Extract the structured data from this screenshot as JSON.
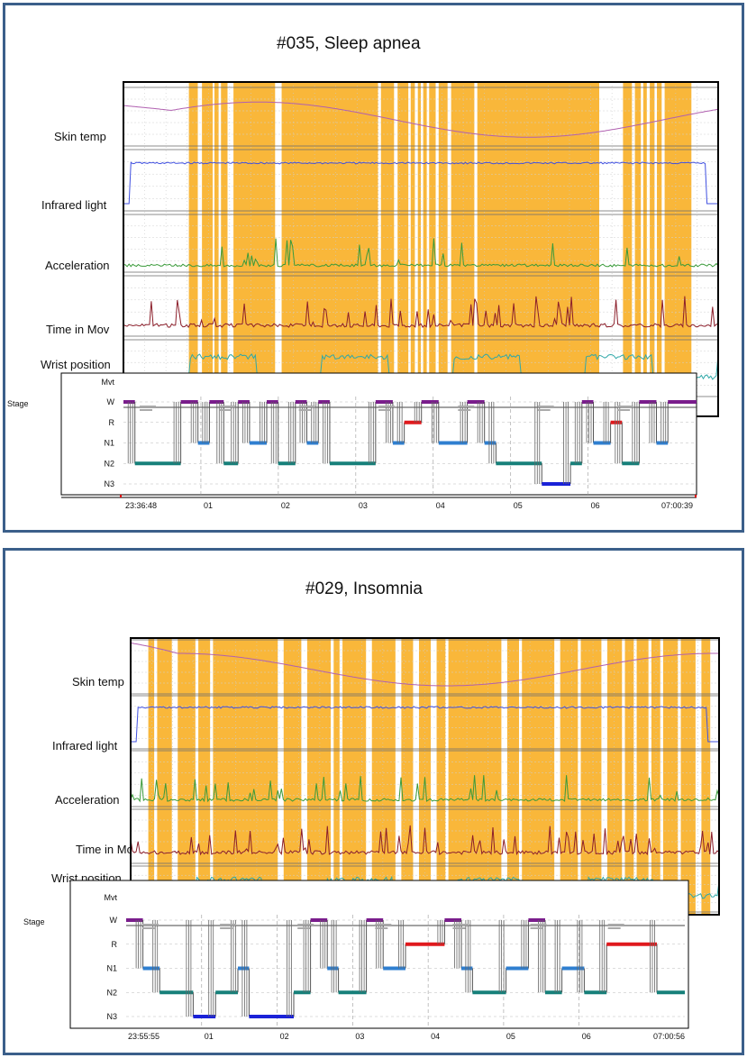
{
  "chart_data": [
    {
      "type": "line",
      "title": "#035, Sleep apnea",
      "start_time": "23:36:48",
      "end_time": "07:00:39",
      "hour_ticks": [
        "01",
        "02",
        "03",
        "04",
        "05",
        "06"
      ],
      "stage_axis_label": "Stage",
      "stage_levels": [
        "Mvt",
        "W",
        "R",
        "N1",
        "N2",
        "N3"
      ],
      "channels": [
        "Skin temp",
        "Infrared  light",
        "Acceleration",
        "Time in Mov",
        "Wrist position"
      ],
      "channel_colors": [
        "#b060b0",
        "#4050e0",
        "#3a9a3a",
        "#8b1e2a",
        "#30a8a8"
      ],
      "highlight_color": "#f9b73a",
      "white_gaps": [
        [
          0,
          0.11
        ],
        [
          0.125,
          0.132
        ],
        [
          0.15,
          0.153
        ],
        [
          0.16,
          0.164
        ],
        [
          0.175,
          0.185
        ],
        [
          0.255,
          0.266
        ],
        [
          0.428,
          0.433
        ],
        [
          0.455,
          0.461
        ],
        [
          0.479,
          0.483
        ],
        [
          0.49,
          0.495
        ],
        [
          0.5,
          0.504
        ],
        [
          0.51,
          0.514
        ],
        [
          0.525,
          0.53
        ],
        [
          0.545,
          0.551
        ],
        [
          0.59,
          0.595
        ],
        [
          0.8,
          0.84
        ],
        [
          0.855,
          0.86
        ],
        [
          0.87,
          0.874
        ],
        [
          0.88,
          0.885
        ],
        [
          0.893,
          0.897
        ],
        [
          0.905,
          0.91
        ],
        [
          0.955,
          1.0
        ]
      ],
      "hypnogram": [
        [
          0,
          "W"
        ],
        [
          0.02,
          "N2"
        ],
        [
          0.1,
          "W"
        ],
        [
          0.13,
          "N1"
        ],
        [
          0.15,
          "W"
        ],
        [
          0.175,
          "N2"
        ],
        [
          0.2,
          "W"
        ],
        [
          0.22,
          "N1"
        ],
        [
          0.25,
          "W"
        ],
        [
          0.27,
          "N2"
        ],
        [
          0.3,
          "W"
        ],
        [
          0.32,
          "N1"
        ],
        [
          0.34,
          "W"
        ],
        [
          0.36,
          "N2"
        ],
        [
          0.44,
          "W"
        ],
        [
          0.47,
          "N1"
        ],
        [
          0.49,
          "R"
        ],
        [
          0.52,
          "W"
        ],
        [
          0.55,
          "N1"
        ],
        [
          0.6,
          "W"
        ],
        [
          0.63,
          "N1"
        ],
        [
          0.65,
          "N2"
        ],
        [
          0.73,
          "N3"
        ],
        [
          0.78,
          "N2"
        ],
        [
          0.8,
          "W"
        ],
        [
          0.82,
          "N1"
        ],
        [
          0.85,
          "R"
        ],
        [
          0.87,
          "N2"
        ],
        [
          0.9,
          "W"
        ],
        [
          0.93,
          "N1"
        ],
        [
          0.95,
          "W"
        ]
      ]
    },
    {
      "type": "line",
      "title": "#029, Insomnia",
      "start_time": "23:55:55",
      "end_time": "07:00:56",
      "hour_ticks": [
        "01",
        "02",
        "03",
        "04",
        "05",
        "06"
      ],
      "stage_axis_label": "Stage",
      "stage_levels": [
        "Mvt",
        "W",
        "R",
        "N1",
        "N2",
        "N3"
      ],
      "channels": [
        "Skin temp",
        "Infrared  light",
        "Acceleration",
        "Time in Mov",
        "Wrist position"
      ],
      "channel_colors": [
        "#b060b0",
        "#4050e0",
        "#3a9a3a",
        "#8b1e2a",
        "#30a8a8"
      ],
      "highlight_color": "#f9b73a",
      "white_gaps": [
        [
          0,
          0.03
        ],
        [
          0.04,
          0.045
        ],
        [
          0.07,
          0.08
        ],
        [
          0.11,
          0.115
        ],
        [
          0.135,
          0.14
        ],
        [
          0.25,
          0.26
        ],
        [
          0.29,
          0.3
        ],
        [
          0.34,
          0.345
        ],
        [
          0.355,
          0.36
        ],
        [
          0.4,
          0.41
        ],
        [
          0.45,
          0.46
        ],
        [
          0.48,
          0.49
        ],
        [
          0.51,
          0.52
        ],
        [
          0.535,
          0.54
        ],
        [
          0.63,
          0.64
        ],
        [
          0.66,
          0.665
        ],
        [
          0.72,
          0.73
        ],
        [
          0.76,
          0.765
        ],
        [
          0.8,
          0.81
        ],
        [
          0.835,
          0.84
        ],
        [
          0.855,
          0.86
        ],
        [
          0.88,
          0.885
        ],
        [
          0.9,
          0.905
        ],
        [
          0.93,
          0.935
        ],
        [
          0.96,
          0.97
        ],
        [
          0.985,
          1.0
        ]
      ],
      "hypnogram": [
        [
          0,
          "W"
        ],
        [
          0.03,
          "N1"
        ],
        [
          0.06,
          "N2"
        ],
        [
          0.12,
          "N3"
        ],
        [
          0.16,
          "N2"
        ],
        [
          0.2,
          "N1"
        ],
        [
          0.22,
          "N3"
        ],
        [
          0.3,
          "N2"
        ],
        [
          0.33,
          "W"
        ],
        [
          0.36,
          "N1"
        ],
        [
          0.38,
          "N2"
        ],
        [
          0.43,
          "W"
        ],
        [
          0.46,
          "N1"
        ],
        [
          0.5,
          "R"
        ],
        [
          0.57,
          "W"
        ],
        [
          0.6,
          "N1"
        ],
        [
          0.62,
          "N2"
        ],
        [
          0.68,
          "N1"
        ],
        [
          0.72,
          "W"
        ],
        [
          0.75,
          "N2"
        ],
        [
          0.78,
          "N1"
        ],
        [
          0.82,
          "N2"
        ],
        [
          0.86,
          "R"
        ],
        [
          0.95,
          "N2"
        ]
      ]
    }
  ]
}
